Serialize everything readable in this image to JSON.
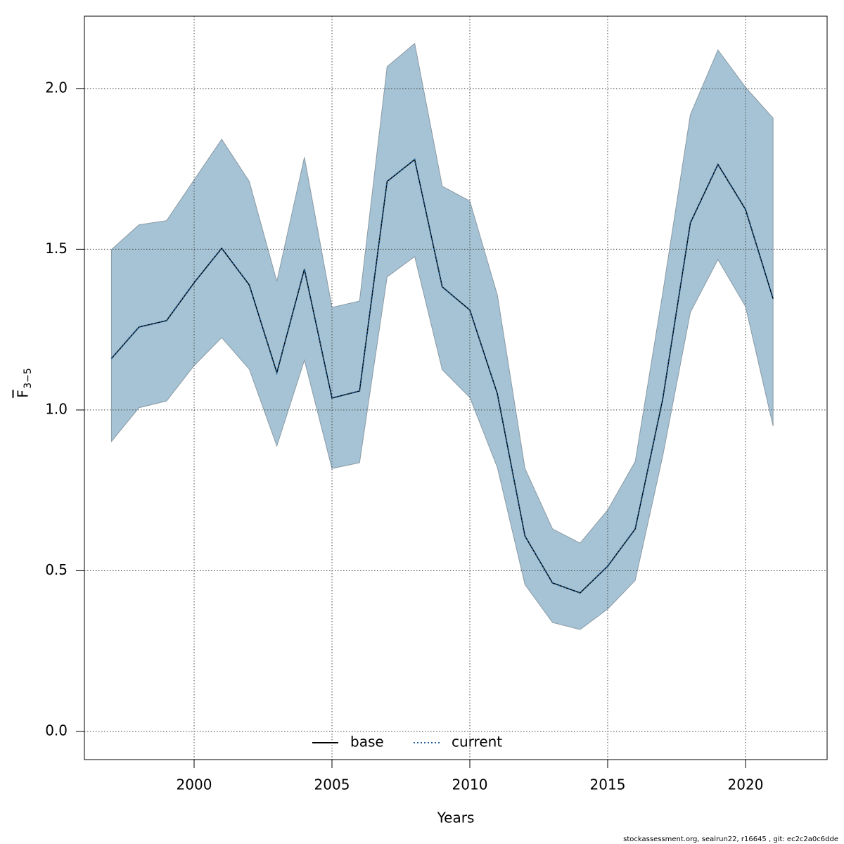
{
  "chart_data": {
    "type": "line",
    "xlabel": "Years",
    "ylabel": "F",
    "ylabel_sub": "3−5",
    "footer": "stockassessment.org, sealrun22, r16645 , git: ec2c2a0c6dde",
    "x": [
      1997,
      1998,
      1999,
      2000,
      2001,
      2002,
      2003,
      2004,
      2005,
      2006,
      2007,
      2008,
      2009,
      2010,
      2011,
      2012,
      2013,
      2014,
      2015,
      2016,
      2017,
      2018,
      2019,
      2020,
      2021
    ],
    "band": {
      "color": "#a5c3d5",
      "upper": [
        1.499,
        1.576,
        1.589,
        1.716,
        1.842,
        1.711,
        1.4,
        1.786,
        1.319,
        1.339,
        2.068,
        2.14,
        1.696,
        1.65,
        1.357,
        0.818,
        0.63,
        0.586,
        0.689,
        0.84,
        1.365,
        1.919,
        2.12,
        2.004,
        1.908
      ],
      "lower": [
        0.902,
        1.007,
        1.028,
        1.138,
        1.225,
        1.127,
        0.888,
        1.155,
        0.818,
        0.836,
        1.414,
        1.477,
        1.125,
        1.039,
        0.821,
        0.457,
        0.339,
        0.317,
        0.381,
        0.47,
        0.858,
        1.304,
        1.468,
        1.322,
        0.95
      ]
    },
    "series": [
      {
        "name": "base",
        "color": "#000000",
        "dash": false,
        "values": [
          1.16,
          1.258,
          1.278,
          1.396,
          1.503,
          1.389,
          1.116,
          1.438,
          1.037,
          1.059,
          1.711,
          1.779,
          1.383,
          1.311,
          1.05,
          0.608,
          0.462,
          0.431,
          0.514,
          0.63,
          1.035,
          1.582,
          1.764,
          1.624,
          1.346
        ]
      },
      {
        "name": "current",
        "color": "#1f5f9a",
        "dash": true,
        "values": [
          1.16,
          1.258,
          1.278,
          1.396,
          1.503,
          1.389,
          1.116,
          1.438,
          1.037,
          1.059,
          1.711,
          1.779,
          1.383,
          1.311,
          1.05,
          0.608,
          0.462,
          0.431,
          0.514,
          0.63,
          1.035,
          1.582,
          1.764,
          1.624,
          1.346
        ]
      }
    ],
    "xlim": [
      1996.02,
      2022.96
    ],
    "ylim": [
      -0.0875,
      2.225
    ],
    "xticks": [
      2000,
      2005,
      2010,
      2015,
      2020
    ],
    "yticks": [
      {
        "value": 0,
        "label": "0.0"
      },
      0.5,
      {
        "value": 1,
        "label": "1.0"
      },
      1.5,
      {
        "value": 2,
        "label": "2.0"
      }
    ],
    "grid": true,
    "legend": "bottom"
  }
}
